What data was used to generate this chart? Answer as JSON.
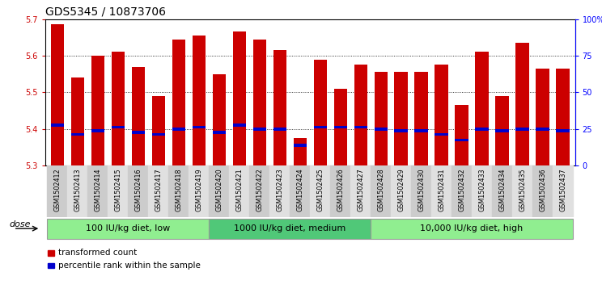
{
  "title": "GDS5345 / 10873706",
  "samples": [
    "GSM1502412",
    "GSM1502413",
    "GSM1502414",
    "GSM1502415",
    "GSM1502416",
    "GSM1502417",
    "GSM1502418",
    "GSM1502419",
    "GSM1502420",
    "GSM1502421",
    "GSM1502422",
    "GSM1502423",
    "GSM1502424",
    "GSM1502425",
    "GSM1502426",
    "GSM1502427",
    "GSM1502428",
    "GSM1502429",
    "GSM1502430",
    "GSM1502431",
    "GSM1502432",
    "GSM1502433",
    "GSM1502434",
    "GSM1502435",
    "GSM1502436",
    "GSM1502437"
  ],
  "bar_values": [
    5.685,
    5.54,
    5.6,
    5.61,
    5.57,
    5.49,
    5.645,
    5.655,
    5.55,
    5.665,
    5.645,
    5.615,
    5.375,
    5.59,
    5.51,
    5.575,
    5.555,
    5.555,
    5.555,
    5.575,
    5.465,
    5.61,
    5.49,
    5.635,
    5.565,
    5.565
  ],
  "percentile_values": [
    5.41,
    5.385,
    5.395,
    5.405,
    5.39,
    5.385,
    5.4,
    5.405,
    5.39,
    5.41,
    5.4,
    5.4,
    5.355,
    5.405,
    5.405,
    5.405,
    5.4,
    5.395,
    5.395,
    5.385,
    5.37,
    5.4,
    5.395,
    5.4,
    5.4,
    5.395
  ],
  "ymin": 5.3,
  "ymax": 5.7,
  "yticks": [
    5.3,
    5.4,
    5.5,
    5.6,
    5.7
  ],
  "bar_color": "#cc0000",
  "percentile_color": "#0000cc",
  "groups": [
    {
      "label": "100 IU/kg diet, low",
      "start": 0,
      "end": 8,
      "color": "#90ee90"
    },
    {
      "label": "1000 IU/kg diet, medium",
      "start": 8,
      "end": 16,
      "color": "#50c878"
    },
    {
      "label": "10,000 IU/kg diet, high",
      "start": 16,
      "end": 26,
      "color": "#90ee90"
    }
  ],
  "right_yticks": [
    0,
    25,
    50,
    75,
    100
  ],
  "right_ylabels": [
    "0",
    "25",
    "50",
    "75",
    "100%"
  ],
  "legend_transformed": "transformed count",
  "legend_percentile": "percentile rank within the sample",
  "dose_label": "dose",
  "xlabel_color": "#cc0000",
  "title_fontsize": 10,
  "tick_fontsize": 7,
  "group_fontsize": 8
}
